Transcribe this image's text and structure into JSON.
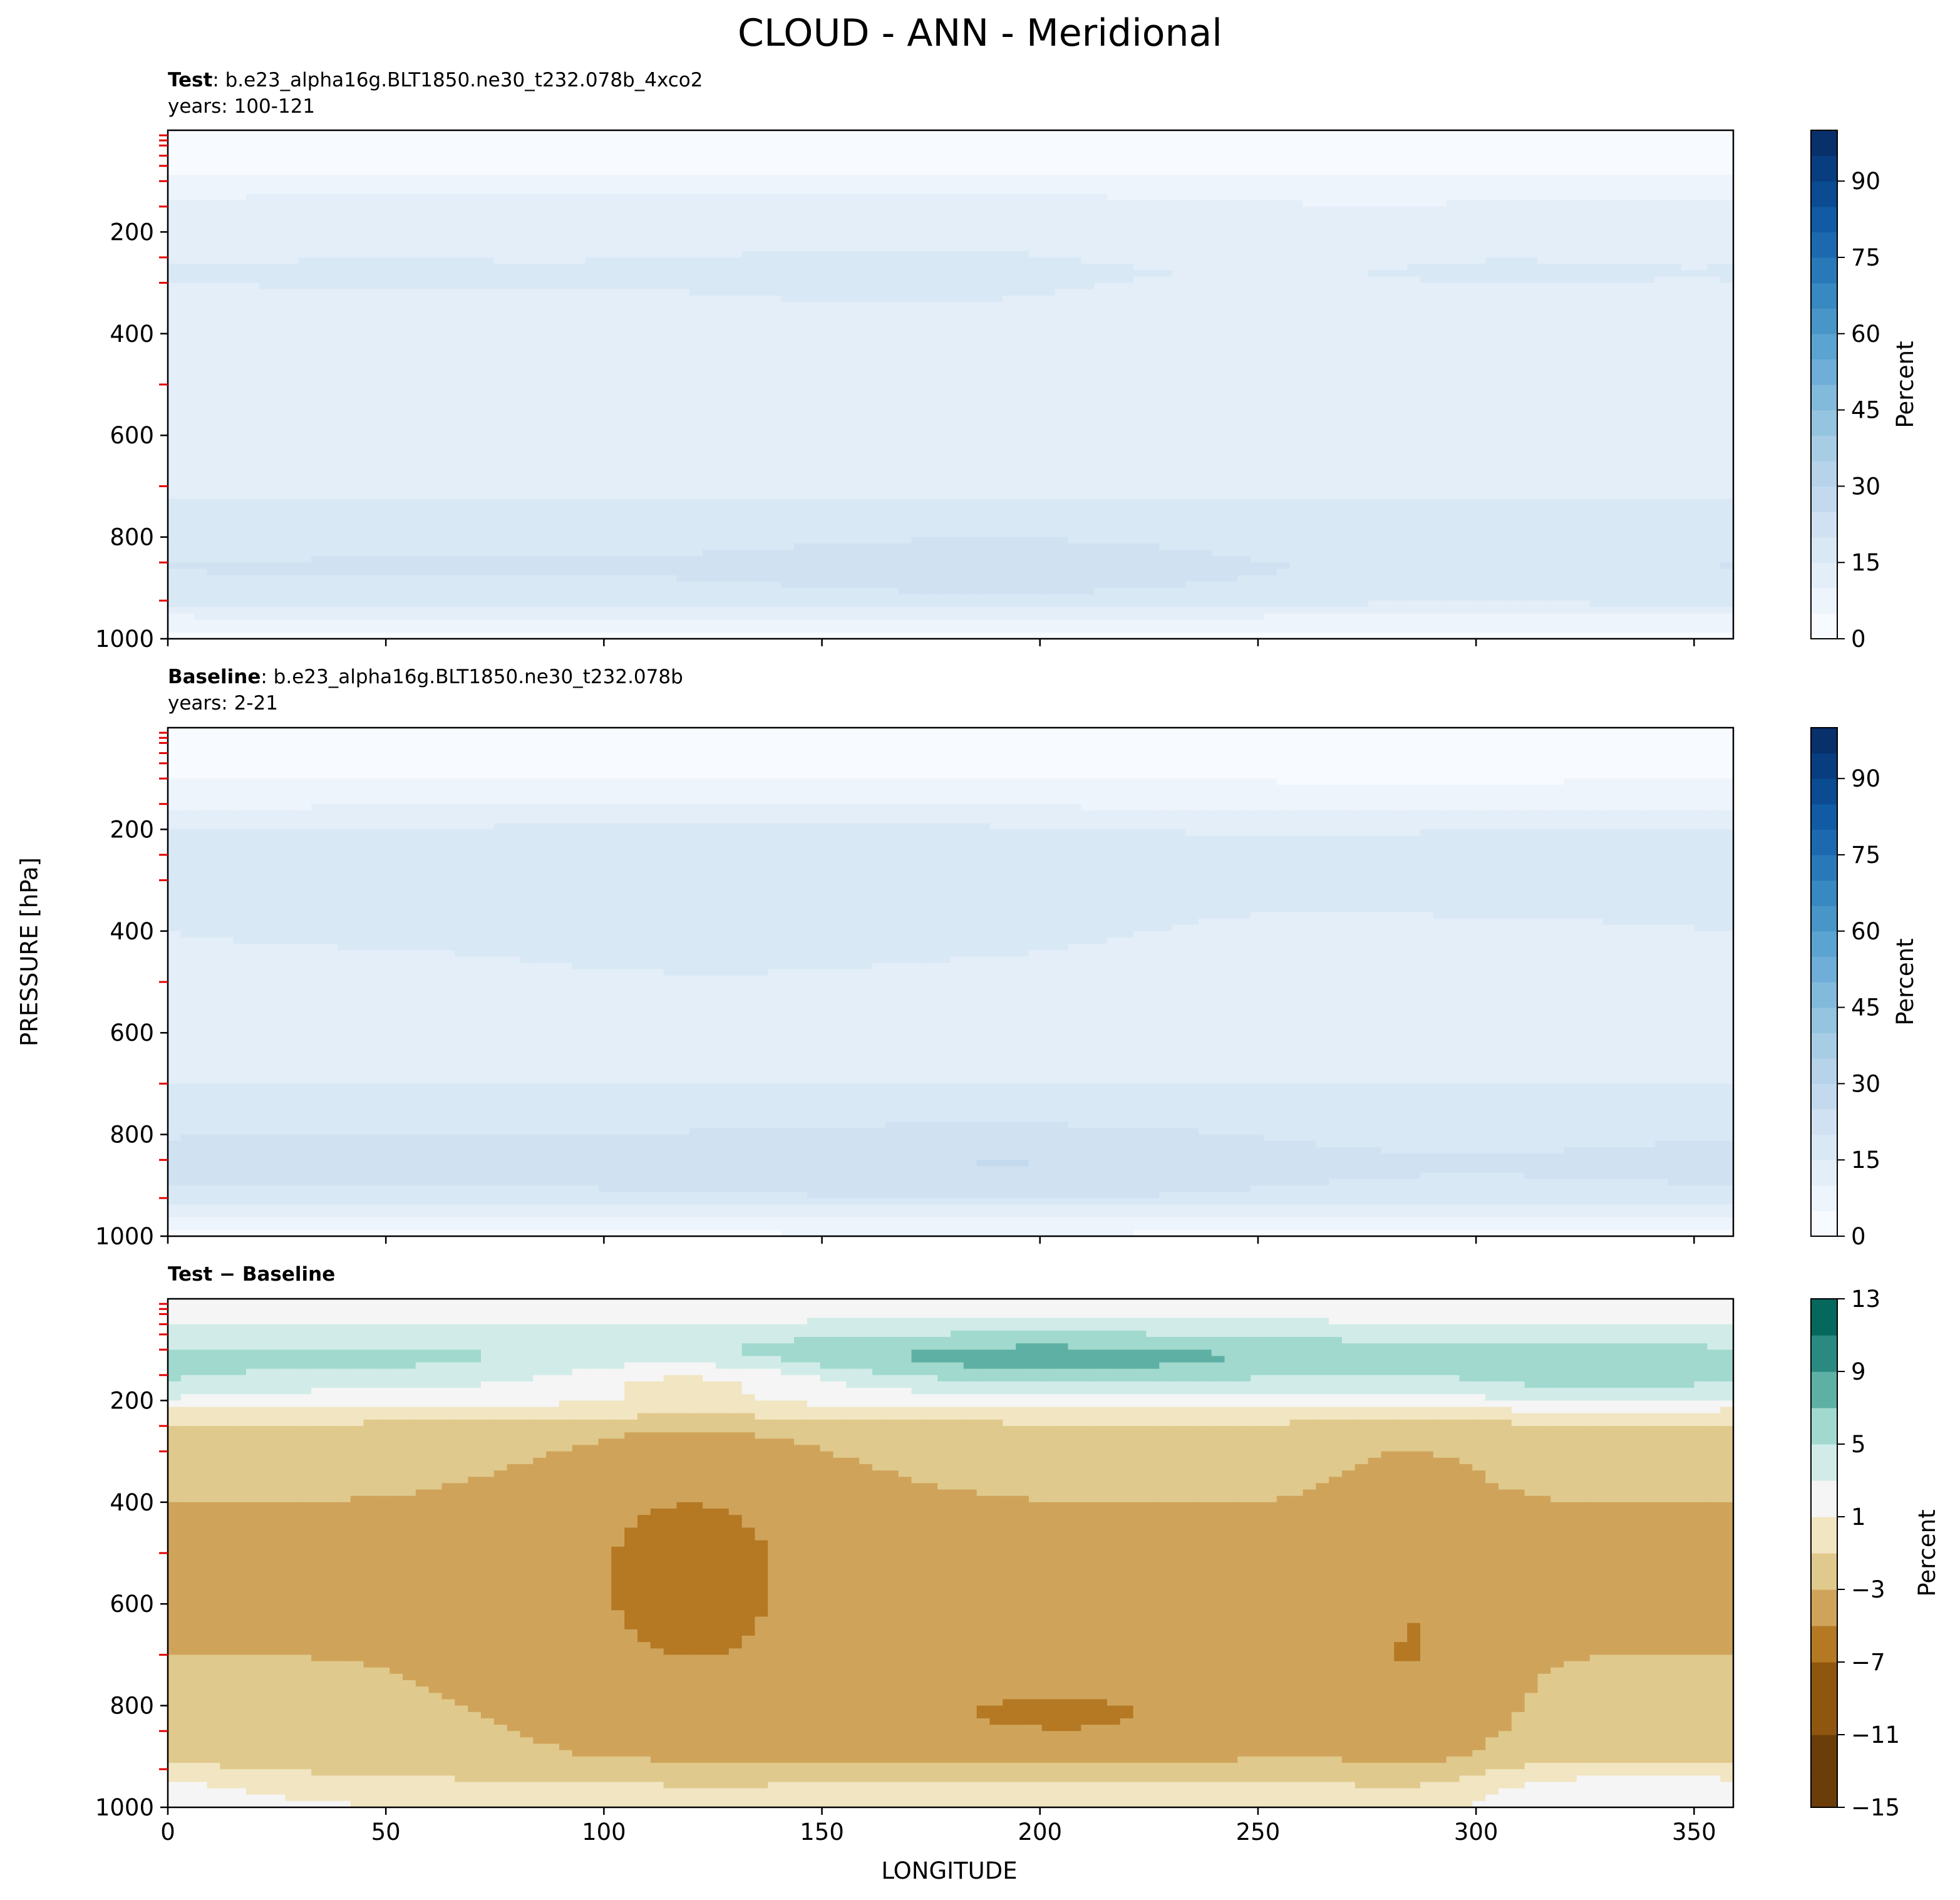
{
  "figure": {
    "title": "CLOUD - ANN - Meridional",
    "xlabel": "LONGITUDE",
    "ylabel": "PRESSURE [hPa]"
  },
  "colors": {
    "blues": [
      "#f7fbff",
      "#edf4fc",
      "#e3eef9",
      "#d9e8f5",
      "#d0e1f2",
      "#c3daee",
      "#b6d3ea",
      "#a7cde4",
      "#94c4df",
      "#81badb",
      "#6eaed8",
      "#5ba3d0",
      "#4896c8",
      "#3888c1",
      "#2979b9",
      "#1c69b0",
      "#105ba4",
      "#0a4b91",
      "#083e80",
      "#08306b"
    ],
    "brbg": [
      "#6b3d09",
      "#8f5610",
      "#b57823",
      "#cfa45a",
      "#e0c98c",
      "#f1e5c2",
      "#f5f5f5",
      "#d1ece8",
      "#a1d9cf",
      "#5eb0a4",
      "#2a8a81",
      "#06675c",
      "#004035"
    ]
  },
  "chart_data": [
    {
      "type": "heatmap",
      "label_bold": "Test",
      "label_rest": ": b.e23_alpha16g.BLT1850.ne30_t232.078b_4xco2",
      "years": "years: 100-121",
      "x": [
        0,
        50,
        100,
        150,
        200,
        250,
        300,
        350
      ],
      "xlim": [
        0,
        359
      ],
      "ylim": [
        1000,
        0
      ],
      "yticks": [
        200,
        400,
        600,
        800,
        1000
      ],
      "colorbar": {
        "label": "Percent",
        "range": [
          0,
          100
        ],
        "ticks": [
          0,
          15,
          30,
          45,
          60,
          75,
          90
        ]
      },
      "field": "test"
    },
    {
      "type": "heatmap",
      "label_bold": "Baseline",
      "label_rest": ": b.e23_alpha16g.BLT1850.ne30_t232.078b",
      "years": "years: 2-21",
      "x": [
        0,
        50,
        100,
        150,
        200,
        250,
        300,
        350
      ],
      "xlim": [
        0,
        359
      ],
      "ylim": [
        1000,
        0
      ],
      "yticks": [
        200,
        400,
        600,
        800,
        1000
      ],
      "colorbar": {
        "label": "Percent",
        "range": [
          0,
          100
        ],
        "ticks": [
          0,
          15,
          30,
          45,
          60,
          75,
          90
        ]
      },
      "field": "base"
    },
    {
      "type": "heatmap",
      "label_bold": "Test − Baseline",
      "label_rest": "",
      "years": "",
      "x": [
        0,
        50,
        100,
        150,
        200,
        250,
        300,
        350
      ],
      "xlim": [
        0,
        359
      ],
      "ylim": [
        1000,
        0
      ],
      "yticks": [
        200,
        400,
        600,
        800,
        1000
      ],
      "colorbar": {
        "label": "Percent",
        "range": [
          -15,
          13
        ],
        "ticks": [
          13,
          9,
          5,
          1,
          -3,
          -7,
          -11,
          -15
        ],
        "tick_labels": [
          "13",
          "9",
          "5",
          "1",
          "−3",
          "−7",
          "−11",
          "−15"
        ]
      },
      "field": "diff"
    }
  ]
}
